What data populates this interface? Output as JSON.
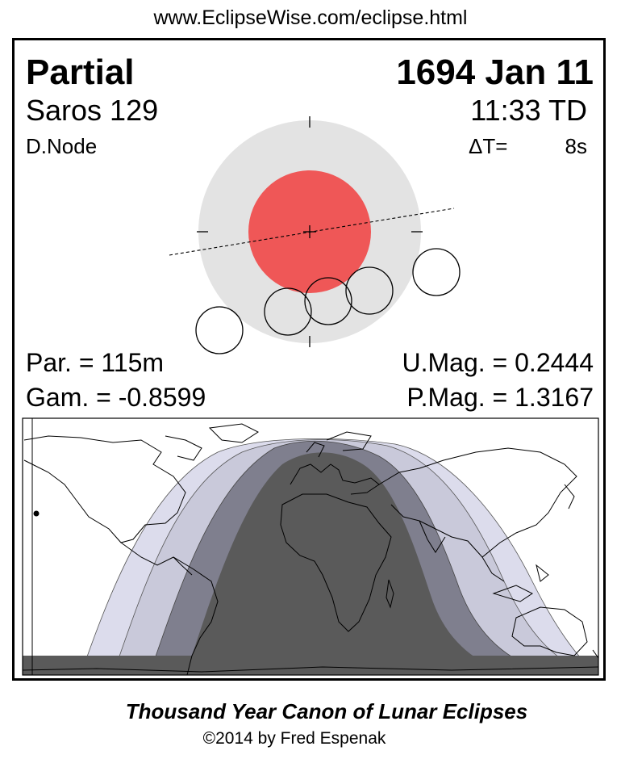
{
  "header": {
    "url": "www.EclipseWise.com/eclipse.html"
  },
  "eclipse": {
    "type": "Partial",
    "date": "1694 Jan 11",
    "saros": "Saros 129",
    "time": "11:33 TD",
    "node": "D.Node",
    "delta_t_label": "ΔT=",
    "delta_t_value": "8s",
    "par": "Par. = 115m",
    "gam": "Gam. = -0.8599",
    "umag": "U.Mag. = 0.2444",
    "pmag": "P.Mag. = 1.3167"
  },
  "diagram": {
    "colors": {
      "penumbra": "#e3e3e3",
      "umbra": "#ef5757",
      "moon_outline": "#000000"
    }
  },
  "map": {
    "colors": {
      "penumbral_outer": "#dcdcec",
      "penumbral_inner": "#c9c9da",
      "partial": "#7f7f8e",
      "total_visible": "#5a5a5a",
      "coastline": "#000000"
    }
  },
  "footer": {
    "title": "Thousand Year Canon of Lunar Eclipses",
    "copyright": "©2014 by Fred Espenak"
  }
}
